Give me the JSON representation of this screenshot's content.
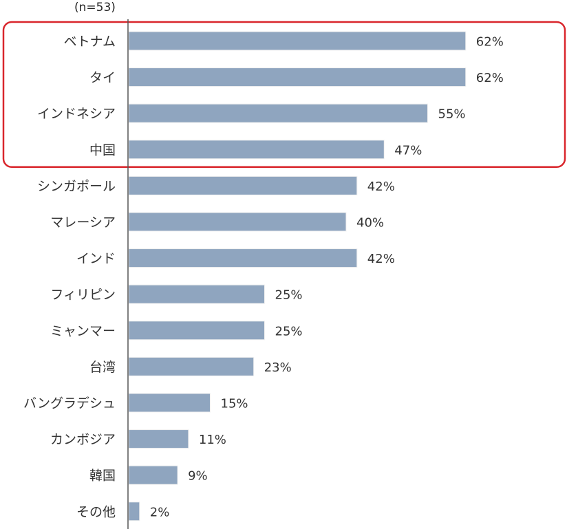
{
  "chart_data": {
    "type": "bar",
    "orientation": "horizontal",
    "sample_size_label": "(n=53)",
    "categories": [
      "ベトナム",
      "タイ",
      "インドネシア",
      "中国",
      "シンガポール",
      "マレーシア",
      "インド",
      "フィリピン",
      "ミャンマー",
      "台湾",
      "バングラデシュ",
      "カンボジア",
      "韓国",
      "その他"
    ],
    "values": [
      62,
      62,
      55,
      47,
      42,
      40,
      42,
      25,
      25,
      23,
      15,
      11,
      9,
      2
    ],
    "value_labels": [
      "62%",
      "62%",
      "55%",
      "47%",
      "42%",
      "40%",
      "42%",
      "25%",
      "25%",
      "23%",
      "15%",
      "11%",
      "9%",
      "2%"
    ],
    "highlighted_categories": [
      "ベトナム",
      "タイ",
      "インドネシア",
      "中国"
    ],
    "colors": {
      "bar": "#8fa5bf",
      "bar_edge": "#7a91ad",
      "highlight_box": "#d9262c",
      "axis": "#555555",
      "text": "#333333"
    },
    "grid": false
  }
}
